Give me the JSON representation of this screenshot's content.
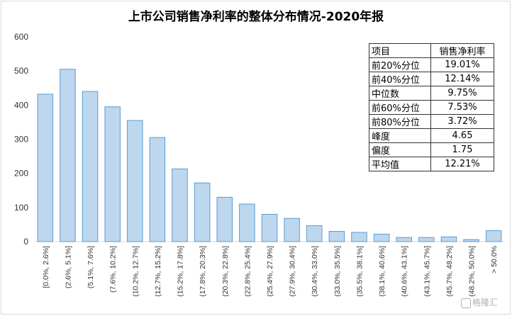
{
  "chart_data": {
    "type": "bar",
    "title": "上市公司销售净利率的整体分布情况-2020年报",
    "xlabel": "",
    "ylabel": "",
    "ylim": [
      0,
      600
    ],
    "yticks": [
      0,
      100,
      200,
      300,
      400,
      500,
      600
    ],
    "grid": false,
    "bar_color": "#bdd7ee",
    "bar_edge_color": "#5b9bd5",
    "categories": [
      "[0.0%, 2.6%]",
      "(2.6%, 5.1%]",
      "(5.1%, 7.6%]",
      "(7.6%, 10.2%]",
      "(10.2%, 12.7%]",
      "(12.7%, 15.2%]",
      "(15.2%, 17.8%]",
      "(17.8%, 20.3%]",
      "(20.3%, 22.8%]",
      "(22.8%, 25.4%]",
      "(25.4%, 27.9%]",
      "(27.9%, 30.4%]",
      "(30.4%, 33.0%]",
      "(33.0%, 35.5%]",
      "(35.5%, 38.1%]",
      "(38.1%, 40.6%]",
      "(40.6%, 43.1%]",
      "(43.1%, 45.7%]",
      "(45.7%, 48.2%]",
      "(48.2%, 50.0%]",
      "> 50.0%"
    ],
    "values": [
      432,
      505,
      440,
      395,
      355,
      305,
      213,
      172,
      130,
      110,
      80,
      68,
      47,
      30,
      27,
      22,
      12,
      12,
      14,
      6,
      32
    ]
  },
  "stats_table": {
    "headers": [
      "项目",
      "销售净利率"
    ],
    "rows": [
      [
        "前20%分位",
        "19.01%"
      ],
      [
        "前40%分位",
        "12.14%"
      ],
      [
        "中位数",
        "9.75%"
      ],
      [
        "前60%分位",
        "7.53%"
      ],
      [
        "前80%分位",
        "3.72%"
      ],
      [
        "峰度",
        "4.65"
      ],
      [
        "偏度",
        "1.75"
      ],
      [
        "平均值",
        "12.21%"
      ]
    ]
  },
  "watermark": "格隆汇"
}
